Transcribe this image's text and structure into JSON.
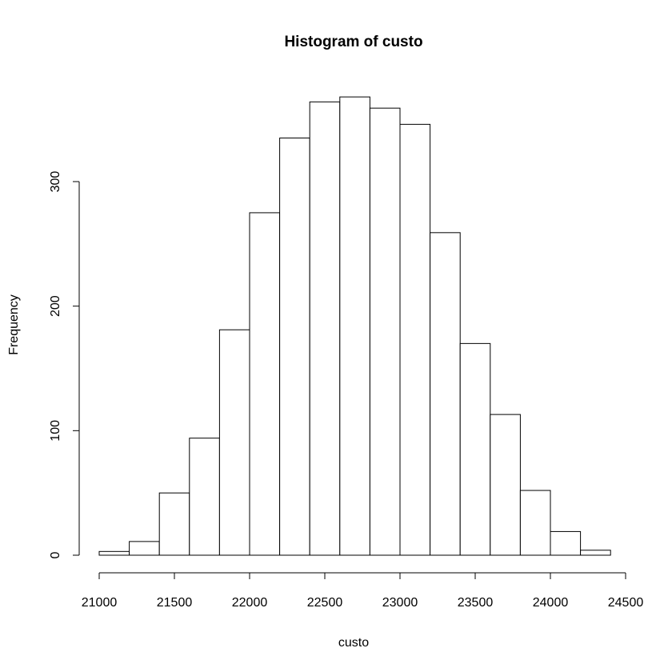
{
  "chart_data": {
    "type": "bar",
    "title": "Histogram of custo",
    "xlabel": "custo",
    "ylabel": "Frequency",
    "xlim": [
      21000,
      24500
    ],
    "ylim": [
      0,
      370
    ],
    "x_ticks": [
      21000,
      21500,
      22000,
      22500,
      23000,
      23500,
      24000,
      24500
    ],
    "y_ticks": [
      0,
      100,
      200,
      300
    ],
    "x_tick_labels": [
      "21000",
      "21500",
      "22000",
      "22500",
      "23000",
      "23500",
      "24000",
      "24500"
    ],
    "y_tick_labels": [
      "0",
      "100",
      "200",
      "300"
    ],
    "grid": false,
    "bins": [
      {
        "start": 21000,
        "end": 21200,
        "count": 3
      },
      {
        "start": 21200,
        "end": 21400,
        "count": 11
      },
      {
        "start": 21400,
        "end": 21600,
        "count": 50
      },
      {
        "start": 21600,
        "end": 21800,
        "count": 94
      },
      {
        "start": 21800,
        "end": 22000,
        "count": 181
      },
      {
        "start": 22000,
        "end": 22200,
        "count": 275
      },
      {
        "start": 22200,
        "end": 22400,
        "count": 335
      },
      {
        "start": 22400,
        "end": 22600,
        "count": 364
      },
      {
        "start": 22600,
        "end": 22800,
        "count": 368
      },
      {
        "start": 22800,
        "end": 23000,
        "count": 359
      },
      {
        "start": 23000,
        "end": 23200,
        "count": 346
      },
      {
        "start": 23200,
        "end": 23400,
        "count": 259
      },
      {
        "start": 23400,
        "end": 23600,
        "count": 170
      },
      {
        "start": 23600,
        "end": 23800,
        "count": 113
      },
      {
        "start": 23800,
        "end": 24000,
        "count": 52
      },
      {
        "start": 24000,
        "end": 24200,
        "count": 19
      },
      {
        "start": 24200,
        "end": 24400,
        "count": 4
      }
    ]
  }
}
